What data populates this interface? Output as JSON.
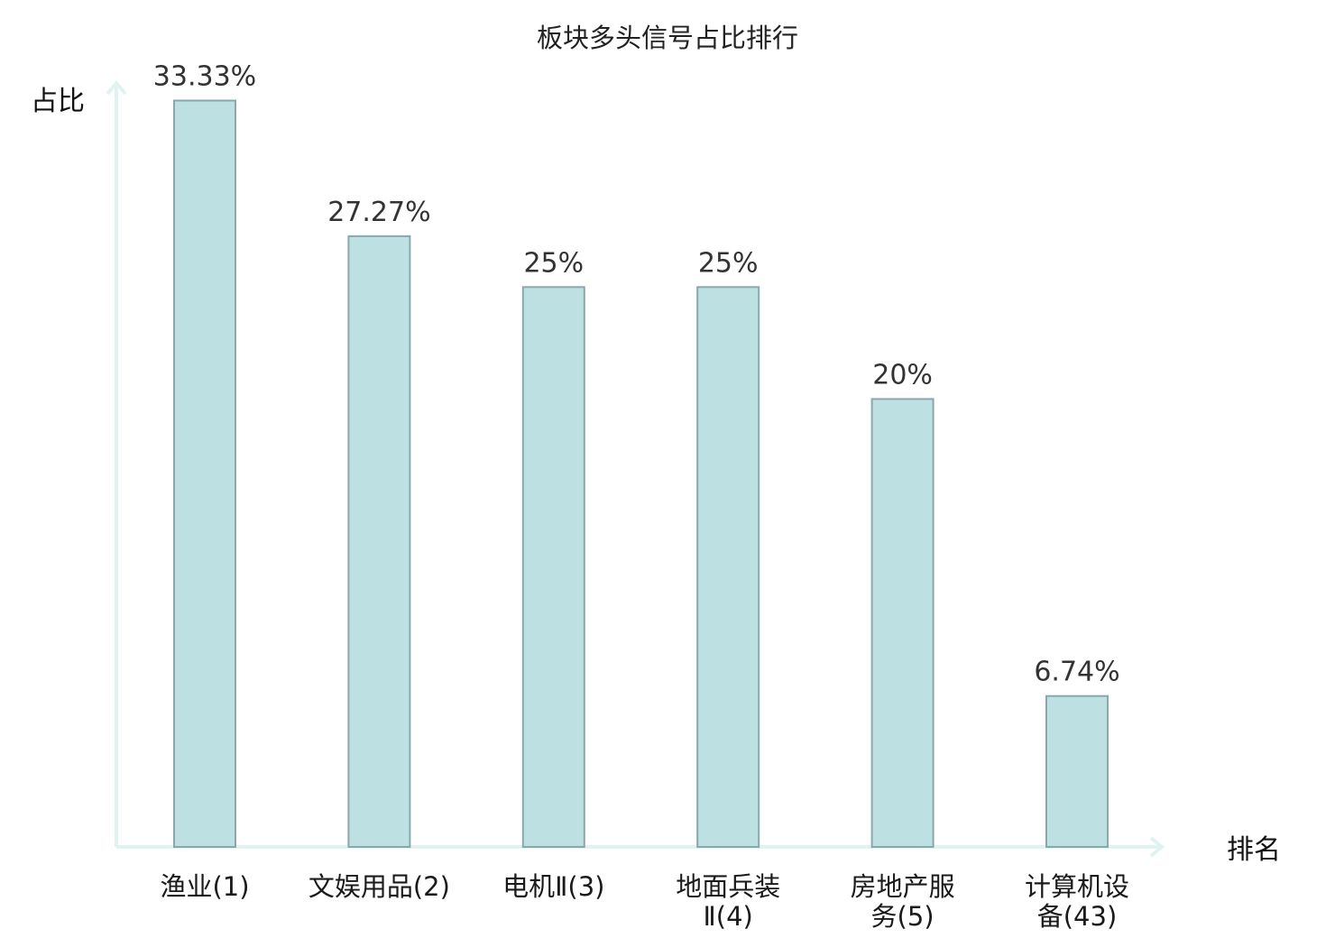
{
  "chart_data": {
    "type": "bar",
    "title": "板块多头信号占比排行",
    "ylabel": "占比",
    "xlabel": "排名",
    "ylim": [
      0,
      35
    ],
    "grid": false,
    "categories": [
      [
        "渔业(1)"
      ],
      [
        "文娱用品(2)"
      ],
      [
        "电机Ⅱ(3)"
      ],
      [
        "地面兵装",
        "Ⅱ(4)"
      ],
      [
        "房地产服",
        "务(5)"
      ],
      [
        "计算机设",
        "备(43)"
      ]
    ],
    "values": [
      33.33,
      27.27,
      25,
      25,
      20,
      6.74
    ],
    "value_labels": [
      "33.33%",
      "27.27%",
      "25%",
      "25%",
      "20%",
      "6.74%"
    ],
    "highlight_index": 5,
    "colors": {
      "bar_fill": "#bde0e3",
      "bar_stroke": "#8aa8ac",
      "axis": "#e0f3f1",
      "highlight_text": "#e8141c"
    }
  }
}
